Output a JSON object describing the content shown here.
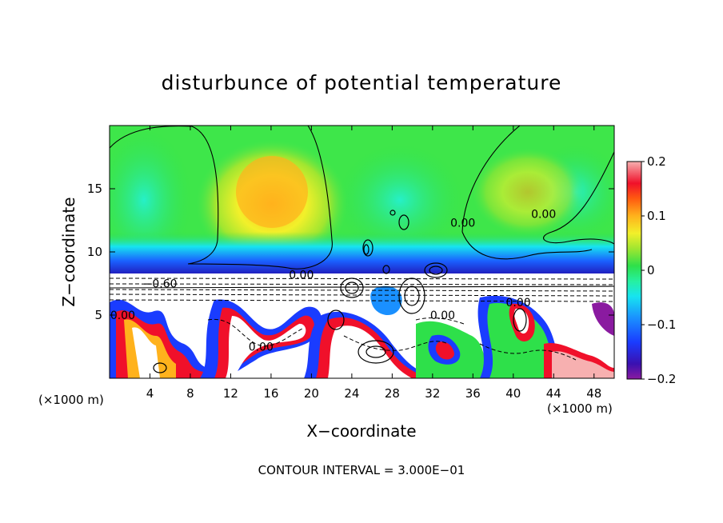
{
  "chart_data": {
    "type": "heatmap",
    "title": "disturbunce of potential temperature",
    "xlabel": "X−coordinate",
    "ylabel": "Z−coordinate",
    "x_unit_left": "(×1000 m)",
    "x_unit_right": "(×1000 m)",
    "xlim": [
      0,
      50
    ],
    "ylim": [
      0,
      20
    ],
    "x_ticks": [
      "4",
      "8",
      "12",
      "16",
      "20",
      "24",
      "28",
      "32",
      "36",
      "40",
      "44",
      "48"
    ],
    "x_tick_values": [
      4,
      8,
      12,
      16,
      20,
      24,
      28,
      32,
      36,
      40,
      44,
      48
    ],
    "y_ticks": [
      "5",
      "10",
      "15"
    ],
    "y_tick_values": [
      5,
      10,
      15
    ],
    "colorbar": {
      "range": [
        -0.2,
        0.2
      ],
      "tick_labels": [
        "0.2",
        "0.1",
        "0",
        "−0.1",
        "−0.2"
      ],
      "tick_values": [
        0.2,
        0.1,
        0,
        -0.1,
        -0.2
      ]
    },
    "contour_labels": [
      {
        "text": "0.00",
        "x": 19,
        "z": 8.2
      },
      {
        "text": "0.00",
        "x": 35,
        "z": 12.3
      },
      {
        "text": "0.00",
        "x": 43,
        "z": 13
      },
      {
        "text": "−0.60",
        "x": 5,
        "z": 7.5
      },
      {
        "text": "0.00",
        "x": 33,
        "z": 5
      },
      {
        "text": "0.00",
        "x": 15,
        "z": 2.5
      },
      {
        "text": "0.00",
        "x": 1.3,
        "z": 5
      },
      {
        "text": "0.00",
        "x": 40.5,
        "z": 6
      }
    ],
    "footer": "CONTOUR INTERVAL = 3.000E−01",
    "grid": false,
    "legend_position": "right"
  }
}
